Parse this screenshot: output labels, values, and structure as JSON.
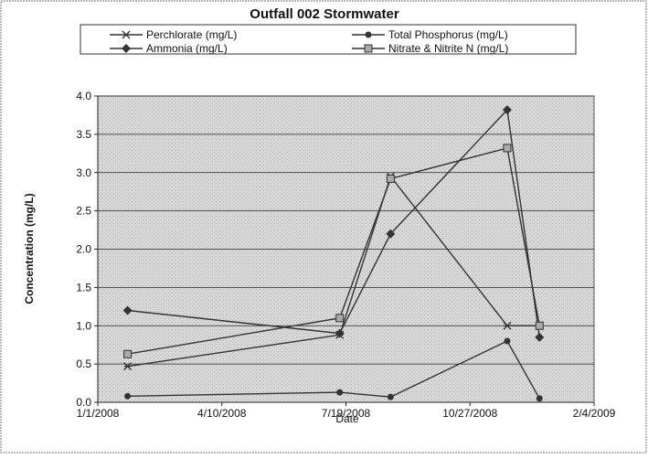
{
  "chart_data": {
    "type": "line",
    "title": "Outfall 002 Stormwater",
    "x_label": "Date",
    "y_label": "Concentration (mg/L)",
    "x": [
      "1/25/2008",
      "7/14/2008",
      "8/24/2008",
      "11/26/2008",
      "12/22/2008"
    ],
    "series": [
      {
        "name": "Perchlorate (mg/L)",
        "color": "#333333",
        "marker": "star",
        "values": [
          0.47,
          0.88,
          2.95,
          1.0,
          1.0
        ]
      },
      {
        "name": "Total Phosphorus (mg/L)",
        "color": "#333333",
        "marker": "circle",
        "values": [
          0.08,
          0.13,
          0.07,
          0.8,
          0.05
        ]
      },
      {
        "name": "Ammonia (mg/L)",
        "color": "#333333",
        "marker": "diamond",
        "values": [
          1.2,
          0.9,
          2.2,
          3.82,
          0.85
        ]
      },
      {
        "name": "Nitrate & Nitrite  N (mg/L)",
        "color": "#333333",
        "marker": "square",
        "values": [
          0.63,
          1.1,
          2.92,
          3.32,
          1.0
        ]
      }
    ],
    "xlim": [
      "1/1/2008",
      "2/4/2009"
    ],
    "xticks": [
      "1/1/2008",
      "4/10/2008",
      "7/19/2008",
      "10/27/2008",
      "2/4/2009"
    ],
    "ylim": [
      0,
      4
    ],
    "yticks": [
      {
        "value": 0,
        "label": "0.0"
      },
      {
        "value": 0.5,
        "label": "0.5"
      },
      {
        "value": 1,
        "label": "1.0"
      },
      {
        "value": 1.5,
        "label": "1.5"
      },
      {
        "value": 2,
        "label": "2.0"
      },
      {
        "value": 2.5,
        "label": "2.5"
      },
      {
        "value": 3,
        "label": "3.0"
      },
      {
        "value": 3.5,
        "label": "3.5"
      },
      {
        "value": 4,
        "label": "4.0"
      }
    ],
    "grid": true,
    "legend": "top"
  }
}
